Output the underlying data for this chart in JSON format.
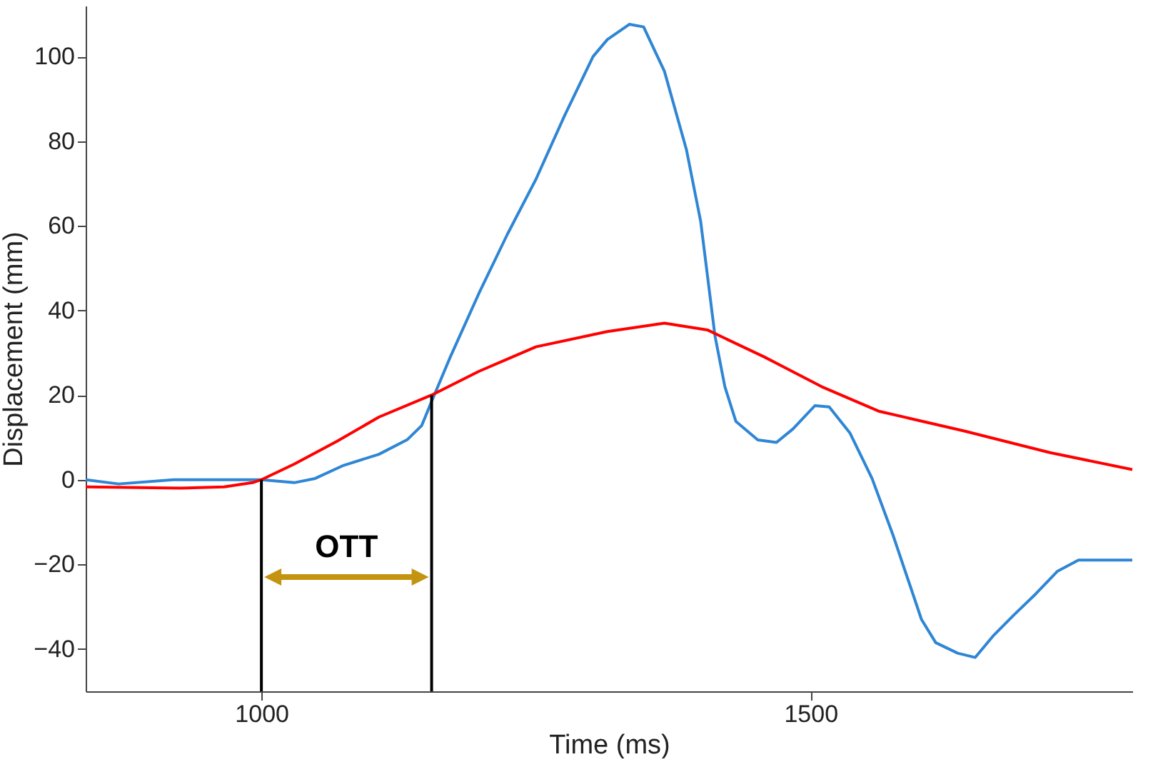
{
  "chart_data": {
    "type": "line",
    "xlabel": "Time (ms)",
    "ylabel": "Displacement (mm)",
    "xlim": [
      840,
      1793
    ],
    "ylim": [
      -50,
      112
    ],
    "xticks": [
      1000,
      1500
    ],
    "yticks": [
      -40,
      -20,
      0,
      20,
      40,
      60,
      80,
      100
    ],
    "grid": false,
    "series": [
      {
        "color": "#2f86d4",
        "x": [
          840,
          870,
          920,
          970,
          1000,
          1030,
          1049,
          1075,
          1107,
          1133,
          1146,
          1155,
          1172,
          1198,
          1224,
          1250,
          1276,
          1302,
          1315,
          1335,
          1348,
          1367,
          1387,
          1400,
          1413,
          1422,
          1432,
          1452,
          1469,
          1484,
          1504,
          1517,
          1536,
          1556,
          1575,
          1588,
          1601,
          1614,
          1634,
          1650,
          1666,
          1685,
          1705,
          1725,
          1744,
          1770,
          1793
        ],
        "values": [
          0,
          -1,
          0,
          0,
          0,
          -0.7,
          0.3,
          3.4,
          6,
          9.5,
          12.8,
          18.5,
          29,
          44,
          58,
          71,
          86,
          100,
          104,
          107.6,
          107,
          96.5,
          78,
          61,
          34,
          22,
          13.8,
          9.4,
          8.8,
          12,
          17.5,
          17.2,
          11,
          0.3,
          -13,
          -23,
          -33,
          -38.5,
          -41,
          -42,
          -37,
          -32,
          -27,
          -21.6,
          -19,
          -19,
          -19
        ]
      },
      {
        "color": "#ff0000",
        "x": [
          840,
          926,
          966,
          992,
          1000,
          1030,
          1069,
          1107,
          1155,
          1198,
          1250,
          1315,
          1367,
          1406,
          1458,
          1510,
          1562,
          1640,
          1718,
          1793
        ],
        "values": [
          -1.7,
          -2,
          -1.7,
          -0.7,
          0,
          3.7,
          9.1,
          14.8,
          20,
          25.6,
          31.4,
          35,
          37,
          35.4,
          29,
          22,
          16.2,
          11.5,
          6.4,
          2.4
        ]
      },
      {
        "color": "#000000",
        "x": [
          1000,
          1000
        ],
        "values": [
          -50,
          0
        ]
      },
      {
        "color": "#000000",
        "x": [
          1155,
          1155
        ],
        "values": [
          -50,
          20
        ]
      }
    ],
    "annotations": [
      "OTT"
    ]
  }
}
